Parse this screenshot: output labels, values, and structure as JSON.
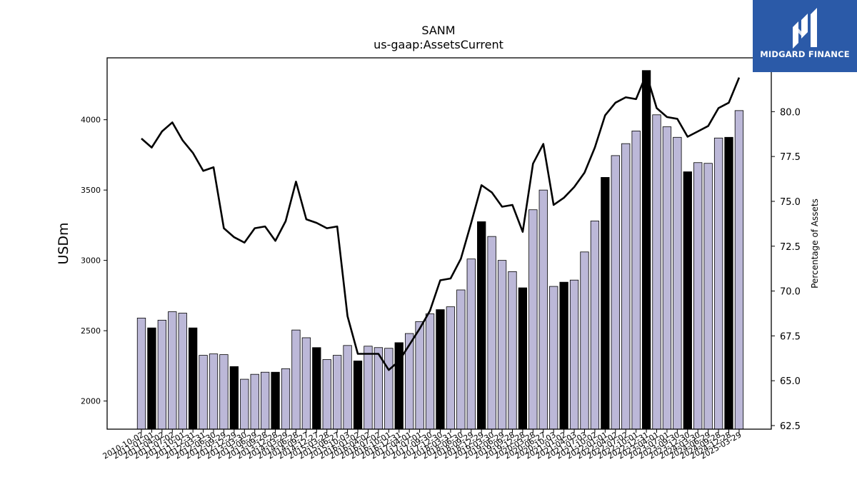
{
  "logo": {
    "text": "MIDGARD FINANCE",
    "mark": "midgard-m-logo-icon"
  },
  "chart_data": {
    "type": "bar",
    "title": "SANM",
    "subtitle": "us-gaap:AssetsCurrent",
    "ylabel": "USDm",
    "y2label": "Percentage of Assets",
    "ylim": [
      1800,
      4440
    ],
    "y2lim": [
      62.3,
      83.0
    ],
    "yticks": [
      "2000",
      "2500",
      "3000",
      "3500",
      "4000"
    ],
    "y2ticks": [
      "62.5",
      "65.0",
      "67.5",
      "70.0",
      "72.5",
      "75.0",
      "77.5",
      "80.0"
    ],
    "grid": false,
    "colors": {
      "bar": "#bcb8d8",
      "bar_fiscal_year_end": "#000000",
      "line": "#000000"
    },
    "categories": [
      "2010-10-02",
      "2011-01-01",
      "2011-04-02",
      "2011-07-02",
      "2011-10-01",
      "2011-12-31",
      "2012-03-31",
      "2012-06-30",
      "2012-09-29",
      "2012-12-29",
      "2013-03-30",
      "2013-06-29",
      "2013-09-28",
      "2013-12-28",
      "2014-03-29",
      "2014-06-28",
      "2014-09-27",
      "2014-12-27",
      "2015-03-28",
      "2015-06-27",
      "2015-10-03",
      "2016-01-02",
      "2016-04-02",
      "2016-07-02",
      "2016-10-01",
      "2016-12-31",
      "2017-04-01",
      "2017-07-01",
      "2017-09-30",
      "2017-12-30",
      "2018-03-31",
      "2018-06-30",
      "2018-09-29",
      "2018-12-29",
      "2019-03-30",
      "2019-06-29",
      "2019-09-28",
      "2019-12-28",
      "2020-03-28",
      "2020-06-27",
      "2020-10-03",
      "2021-01-02",
      "2021-04-03",
      "2021-07-03",
      "2021-10-02",
      "2022-01-01",
      "2022-04-02",
      "2022-07-02",
      "2022-10-01",
      "2022-12-31",
      "2023-04-01",
      "2023-07-01",
      "2023-09-30",
      "2023-12-30",
      "2024-03-30",
      "2024-06-29",
      "2024-09-28",
      "2024-12-28",
      "2025-03-29"
    ],
    "series": [
      {
        "kind": "bar",
        "values": [
          2590,
          2520,
          2575,
          2635,
          2625,
          2520,
          2325,
          2335,
          2330,
          2245,
          2155,
          2190,
          2205,
          2205,
          2230,
          2505,
          2450,
          2380,
          2295,
          2325,
          2395,
          2285,
          2390,
          2380,
          2375,
          2415,
          2480,
          2565,
          2620,
          2650,
          2670,
          2790,
          3010,
          3275,
          3170,
          3000,
          2920,
          2805,
          3360,
          3500,
          2815,
          2845,
          2860,
          3060,
          3280,
          3590,
          3745,
          3830,
          3920,
          4350,
          4035,
          3950,
          3875,
          3630,
          3695,
          3690,
          3870,
          3875,
          4065
        ],
        "fiscal_year_end": [
          false,
          true,
          false,
          false,
          false,
          true,
          false,
          false,
          false,
          true,
          false,
          false,
          false,
          true,
          false,
          false,
          false,
          true,
          false,
          false,
          false,
          true,
          false,
          false,
          false,
          true,
          false,
          false,
          false,
          true,
          false,
          false,
          false,
          true,
          false,
          false,
          false,
          true,
          false,
          false,
          false,
          true,
          false,
          false,
          false,
          true,
          false,
          false,
          false,
          true,
          false,
          false,
          false,
          true,
          false,
          false,
          false,
          true,
          false
        ]
      },
      {
        "kind": "line",
        "axis": "right",
        "values": [
          78.5,
          78.0,
          78.9,
          79.4,
          78.4,
          77.7,
          76.7,
          76.9,
          73.5,
          73.0,
          72.7,
          73.5,
          73.6,
          72.8,
          73.9,
          76.1,
          74.0,
          73.8,
          73.5,
          73.6,
          68.6,
          66.5,
          66.5,
          66.5,
          65.6,
          66.1,
          67.0,
          67.9,
          68.9,
          70.6,
          70.7,
          71.8,
          73.8,
          75.9,
          75.5,
          74.7,
          74.8,
          73.3,
          77.1,
          78.2,
          74.8,
          75.2,
          75.8,
          76.6,
          78.0,
          79.8,
          80.5,
          80.8,
          80.7,
          82.1,
          80.2,
          79.7,
          79.6,
          78.6,
          78.9,
          79.2,
          80.2,
          80.5,
          81.9
        ]
      }
    ]
  }
}
